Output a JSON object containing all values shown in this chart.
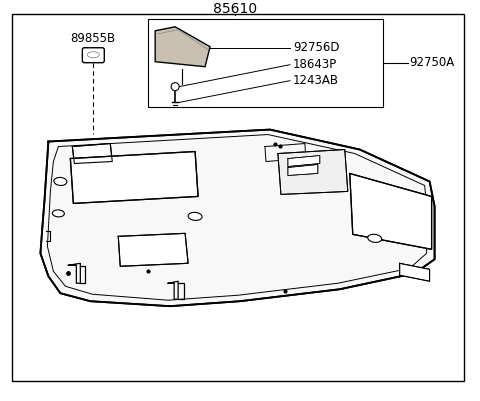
{
  "title": "85610",
  "background_color": "#ffffff",
  "border_color": "#000000",
  "line_color": "#000000",
  "text_color": "#000000",
  "labels": {
    "main_part": "85610",
    "part_89855B": "89855B",
    "part_92750A": "92750A",
    "part_92756D": "92756D",
    "part_18643P": "18643P",
    "part_1243AB": "1243AB"
  },
  "font_size_main": 10,
  "font_size_labels": 8.5
}
